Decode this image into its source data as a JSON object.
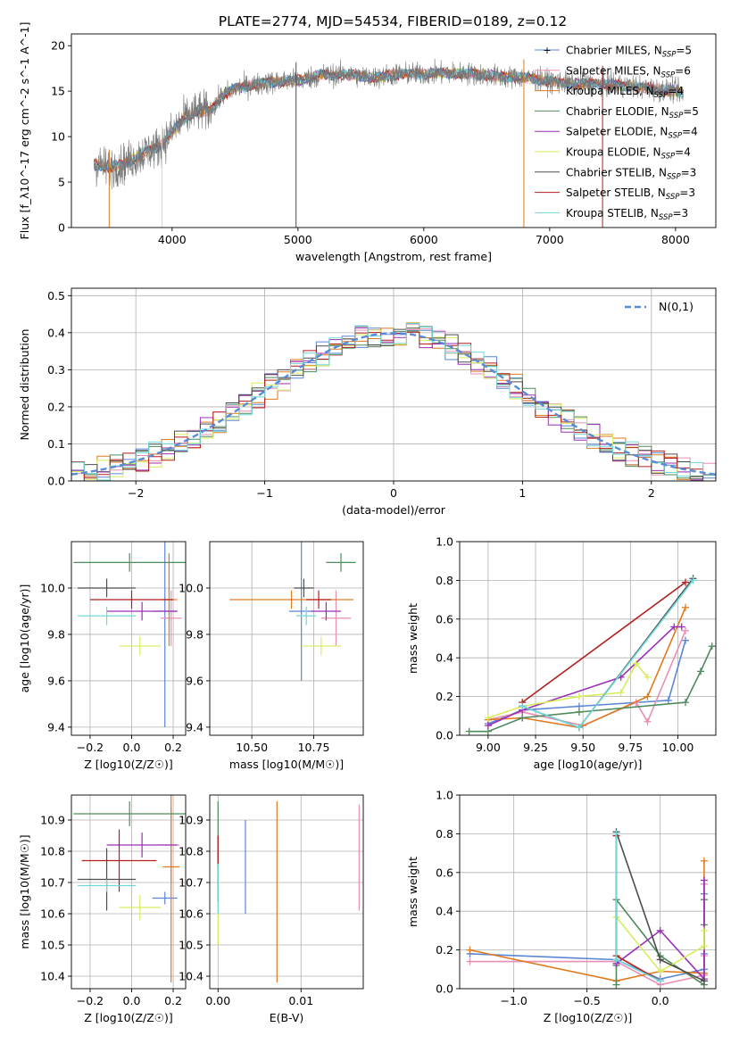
{
  "figure_title": "PLATE=2774, MJD=54534, FIBERID=0189, z=0.12",
  "models": [
    {
      "name": "Chabrier MILES",
      "n_ssp": "5",
      "color": "#5b86d6"
    },
    {
      "name": "Salpeter MILES",
      "n_ssp": "6",
      "color": "#e98fb4"
    },
    {
      "name": "Kroupa MILES",
      "n_ssp": "4",
      "color": "#e07a1f"
    },
    {
      "name": "Chabrier ELODIE",
      "n_ssp": "5",
      "color": "#4f8a5b"
    },
    {
      "name": "Salpeter ELODIE",
      "n_ssp": "4",
      "color": "#9b2fb5"
    },
    {
      "name": "Kroupa ELODIE",
      "n_ssp": "4",
      "color": "#d5ee5a"
    },
    {
      "name": "Chabrier STELIB",
      "n_ssp": "3",
      "color": "#4d4d4d"
    },
    {
      "name": "Salpeter STELIB",
      "n_ssp": "3",
      "color": "#b41f1f"
    },
    {
      "name": "Kroupa STELIB",
      "n_ssp": "3",
      "color": "#6fd8d8"
    }
  ],
  "chart_data": [
    {
      "id": "spectrum",
      "type": "line",
      "xlabel": "wavelength [Angstrom, rest frame]",
      "ylabel": "Flux [f_λ10^-17 erg cm^-2 s^-1 A^-1]",
      "xlim": [
        3200,
        8320
      ],
      "ylim": [
        0,
        21.3
      ],
      "xticks": [
        4000,
        5000,
        6000,
        7000,
        8000
      ],
      "yticks": [
        0,
        5,
        10,
        15,
        20
      ],
      "grid": false,
      "legend": "upper-right",
      "continuum_anchors": {
        "x": [
          3380,
          3500,
          3600,
          3700,
          3800,
          3900,
          4000,
          4100,
          4200,
          4300,
          4400,
          4500,
          4600,
          4800,
          5000,
          5200,
          5400,
          5600,
          5800,
          6000,
          6200,
          6400,
          6600,
          6800,
          7000,
          7200,
          7400,
          7600,
          7800,
          8000,
          8060
        ],
        "y": [
          7.0,
          6.6,
          6.9,
          7.6,
          8.4,
          8.9,
          10.5,
          12.0,
          12.8,
          12.8,
          14.5,
          15.3,
          15.6,
          16.0,
          16.2,
          16.8,
          16.8,
          16.5,
          16.9,
          16.9,
          17.0,
          16.9,
          16.6,
          16.5,
          16.1,
          15.8,
          15.8,
          15.6,
          15.3,
          15.0,
          14.8
        ]
      }
    },
    {
      "id": "residuals",
      "type": "histogram",
      "xlabel": "(data-model)/error",
      "ylabel": "Normed distribution",
      "xlim": [
        -2.5,
        2.5
      ],
      "ylim": [
        0,
        0.52
      ],
      "xticks": [
        -2,
        -1,
        0,
        1,
        2
      ],
      "yticks": [
        0.0,
        0.1,
        0.2,
        0.3,
        0.4,
        0.5
      ],
      "grid": true,
      "legend": "upper-right",
      "reference_label": "N(0,1)",
      "bin_width": 0.1
    },
    {
      "id": "age_vs_Z",
      "type": "errorbar",
      "xlabel": "Z [log10(Z/Z☉)]",
      "ylabel": "age [log10(age/yr)]",
      "xlim": [
        -0.29,
        0.26
      ],
      "ylim": [
        9.365,
        10.2
      ],
      "xticks": [
        -0.2,
        0.0,
        0.2
      ],
      "yticks": [
        9.4,
        9.6,
        9.8,
        10.0
      ],
      "grid": true,
      "points": [
        {
          "model": 0,
          "x": 0.16,
          "y": 9.9,
          "xerr": 0.06,
          "yerr": 0.5
        },
        {
          "model": 1,
          "x": 0.19,
          "y": 9.87,
          "xerr": 0.05,
          "yerr": 0.12
        },
        {
          "model": 2,
          "x": 0.18,
          "y": 9.95,
          "xerr": 0.04,
          "yerr": 0.2
        },
        {
          "model": 3,
          "x": -0.01,
          "y": 10.11,
          "xerr": 0.27,
          "yerr": 0.04
        },
        {
          "model": 4,
          "x": 0.05,
          "y": 9.9,
          "xerr": 0.17,
          "yerr": 0.04
        },
        {
          "model": 5,
          "x": 0.04,
          "y": 9.75,
          "xerr": 0.1,
          "yerr": 0.04
        },
        {
          "model": 6,
          "x": -0.12,
          "y": 10.0,
          "xerr": 0.14,
          "yerr": 0.04
        },
        {
          "model": 7,
          "x": 0.0,
          "y": 9.95,
          "xerr": 0.2,
          "yerr": 0.04
        },
        {
          "model": 8,
          "x": -0.12,
          "y": 9.88,
          "xerr": 0.14,
          "yerr": 0.04
        }
      ]
    },
    {
      "id": "age_vs_mass",
      "type": "errorbar",
      "xlabel": "mass [log10(M/M☉)]",
      "ylabel": "",
      "xlim": [
        10.33,
        10.95
      ],
      "ylim": [
        9.365,
        10.2
      ],
      "xticks": [
        10.5,
        10.75
      ],
      "yticks": [
        9.4,
        9.6,
        9.8,
        10.0
      ],
      "grid": true,
      "points": [
        {
          "model": 0,
          "x": 10.7,
          "y": 9.9,
          "xerr": 0.05,
          "yerr": 0.3
        },
        {
          "model": 1,
          "x": 10.84,
          "y": 9.87,
          "xerr": 0.06,
          "yerr": 0.12
        },
        {
          "model": 2,
          "x": 10.66,
          "y": 9.95,
          "xerr": 0.25,
          "yerr": 0.04
        },
        {
          "model": 3,
          "x": 10.86,
          "y": 10.11,
          "xerr": 0.06,
          "yerr": 0.04
        },
        {
          "model": 4,
          "x": 10.8,
          "y": 9.9,
          "xerr": 0.06,
          "yerr": 0.04
        },
        {
          "model": 5,
          "x": 10.78,
          "y": 9.75,
          "xerr": 0.08,
          "yerr": 0.04
        },
        {
          "model": 6,
          "x": 10.71,
          "y": 10.0,
          "xerr": 0.04,
          "yerr": 0.04
        },
        {
          "model": 7,
          "x": 10.77,
          "y": 9.95,
          "xerr": 0.05,
          "yerr": 0.04
        },
        {
          "model": 8,
          "x": 10.72,
          "y": 9.88,
          "xerr": 0.04,
          "yerr": 0.04
        }
      ]
    },
    {
      "id": "massweight_vs_age",
      "type": "line",
      "xlabel": "age [log10(age/yr)]",
      "ylabel": "mass weight",
      "xlim": [
        8.85,
        10.2
      ],
      "ylim": [
        0,
        1.0
      ],
      "xticks": [
        9.0,
        9.25,
        9.5,
        9.75,
        10.0
      ],
      "yticks": [
        0.0,
        0.2,
        0.4,
        0.6,
        0.8,
        1.0
      ],
      "grid": true,
      "series": [
        {
          "model": 0,
          "x": [
            9.0,
            9.18,
            9.48,
            9.95,
            10.04
          ],
          "y": [
            0.06,
            0.13,
            0.15,
            0.18,
            0.49
          ]
        },
        {
          "model": 1,
          "x": [
            9.0,
            9.18,
            9.5,
            9.78,
            9.84,
            10.04
          ],
          "y": [
            0.08,
            0.12,
            0.05,
            0.17,
            0.07,
            0.54
          ]
        },
        {
          "model": 2,
          "x": [
            9.0,
            9.18,
            9.48,
            9.84,
            10.04
          ],
          "y": [
            0.08,
            0.09,
            0.04,
            0.2,
            0.66
          ]
        },
        {
          "model": 3,
          "x": [
            8.9,
            9.0,
            9.18,
            9.48,
            10.04,
            10.12,
            10.18
          ],
          "y": [
            0.02,
            0.02,
            0.09,
            0.12,
            0.17,
            0.33,
            0.46
          ]
        },
        {
          "model": 4,
          "x": [
            9.0,
            9.18,
            9.7,
            9.98,
            10.02
          ],
          "y": [
            0.05,
            0.13,
            0.3,
            0.56,
            0.56
          ]
        },
        {
          "model": 5,
          "x": [
            9.0,
            9.18,
            9.48,
            9.7,
            9.78,
            9.84
          ],
          "y": [
            0.09,
            0.15,
            0.2,
            0.22,
            0.37,
            0.3
          ]
        },
        {
          "model": 6,
          "x": [
            9.18,
            9.48,
            10.08
          ],
          "y": [
            0.15,
            0.04,
            0.81
          ]
        },
        {
          "model": 7,
          "x": [
            9.18,
            10.04
          ],
          "y": [
            0.17,
            0.79
          ]
        },
        {
          "model": 8,
          "x": [
            9.18,
            9.48,
            10.08
          ],
          "y": [
            0.15,
            0.04,
            0.8
          ]
        }
      ]
    },
    {
      "id": "mass_vs_Z",
      "type": "errorbar",
      "xlabel": "Z [log10(Z/Z☉)]",
      "ylabel": "mass [log10(M/M☉)]",
      "xlim": [
        -0.29,
        0.26
      ],
      "ylim": [
        10.36,
        10.98
      ],
      "xticks": [
        -0.2,
        0.0,
        0.2
      ],
      "yticks": [
        10.4,
        10.5,
        10.6,
        10.7,
        10.8,
        10.9
      ],
      "grid": true,
      "points": [
        {
          "model": 0,
          "x": 0.16,
          "y": 10.65,
          "xerr": 0.06,
          "yerr": 0.02
        },
        {
          "model": 1,
          "x": 0.19,
          "y": 10.82,
          "xerr": 0.04,
          "yerr": 0.12
        },
        {
          "model": 2,
          "x": 0.19,
          "y": 10.75,
          "xerr": 0.04,
          "yerr": 0.37
        },
        {
          "model": 3,
          "x": -0.01,
          "y": 10.92,
          "xerr": 0.27,
          "yerr": 0.04
        },
        {
          "model": 4,
          "x": 0.05,
          "y": 10.82,
          "xerr": 0.17,
          "yerr": 0.04
        },
        {
          "model": 5,
          "x": 0.04,
          "y": 10.62,
          "xerr": 0.1,
          "yerr": 0.04
        },
        {
          "model": 6,
          "x": -0.12,
          "y": 10.71,
          "xerr": 0.14,
          "yerr": 0.1
        },
        {
          "model": 7,
          "x": -0.06,
          "y": 10.77,
          "xerr": 0.18,
          "yerr": 0.1
        },
        {
          "model": 8,
          "x": -0.12,
          "y": 10.69,
          "xerr": 0.14,
          "yerr": 0.02
        }
      ]
    },
    {
      "id": "mass_vs_ebv",
      "type": "errorbar",
      "xlabel": "E(B-V)",
      "ylabel": "",
      "xlim": [
        -0.001,
        0.0175
      ],
      "ylim": [
        10.36,
        10.98
      ],
      "xticks": [
        0.0,
        0.01
      ],
      "yticks": [
        10.4,
        10.5,
        10.6,
        10.7,
        10.8,
        10.9
      ],
      "grid": true,
      "points": [
        {
          "model": 0,
          "x": 0.0033,
          "y": 10.75,
          "xerr": 0,
          "yerr": 0.15
        },
        {
          "model": 1,
          "x": 0.017,
          "y": 10.78,
          "xerr": 0,
          "yerr": 0.17
        },
        {
          "model": 2,
          "x": 0.0071,
          "y": 10.67,
          "xerr": 0,
          "yerr": 0.29
        },
        {
          "model": 3,
          "x": 0.0,
          "y": 10.85,
          "xerr": 0,
          "yerr": 0.11
        },
        {
          "model": 4,
          "x": 0.0,
          "y": 10.8,
          "xerr": 0,
          "yerr": 0.05
        },
        {
          "model": 5,
          "x": 0.0,
          "y": 10.64,
          "xerr": 0,
          "yerr": 0.14
        },
        {
          "model": 6,
          "x": 0.0,
          "y": 10.72,
          "xerr": 0,
          "yerr": 0.08
        },
        {
          "model": 7,
          "x": 0.0,
          "y": 10.8,
          "xerr": 0,
          "yerr": 0.05
        },
        {
          "model": 8,
          "x": 0.0,
          "y": 10.68,
          "xerr": 0,
          "yerr": 0.08
        }
      ]
    },
    {
      "id": "massweight_vs_Z",
      "type": "line",
      "xlabel": "Z [log10(Z/Z☉)]",
      "ylabel": "mass weight",
      "xlim": [
        -1.37,
        0.38
      ],
      "ylim": [
        0,
        1.0
      ],
      "xticks": [
        -1.0,
        -0.5,
        0.0
      ],
      "yticks": [
        0.0,
        0.2,
        0.4,
        0.6,
        0.8,
        1.0
      ],
      "grid": true,
      "series": [
        {
          "model": 0,
          "x": [
            -1.3,
            -0.3,
            0.0,
            0.3,
            0.3,
            0.3
          ],
          "y": [
            0.18,
            0.15,
            0.05,
            0.1,
            0.18,
            0.49
          ]
        },
        {
          "model": 1,
          "x": [
            -1.3,
            -0.3,
            0.0,
            0.3,
            0.3,
            0.3,
            0.3
          ],
          "y": [
            0.14,
            0.14,
            0.02,
            0.07,
            0.08,
            0.17,
            0.54
          ]
        },
        {
          "model": 2,
          "x": [
            -1.3,
            -0.3,
            0.0,
            0.3,
            0.3
          ],
          "y": [
            0.2,
            0.04,
            0.09,
            0.08,
            0.66
          ]
        },
        {
          "model": 3,
          "x": [
            -0.3,
            -0.3,
            -0.3,
            0.0,
            0.3,
            0.3,
            0.3
          ],
          "y": [
            0.02,
            0.12,
            0.46,
            0.17,
            0.02,
            0.33,
            0.46
          ]
        },
        {
          "model": 4,
          "x": [
            -0.3,
            0.0,
            0.3,
            0.3
          ],
          "y": [
            0.13,
            0.3,
            0.05,
            0.56
          ]
        },
        {
          "model": 5,
          "x": [
            -0.3,
            0.0,
            0.3,
            0.3
          ],
          "y": [
            0.37,
            0.09,
            0.22,
            0.3
          ]
        },
        {
          "model": 6,
          "x": [
            -0.3,
            0.0,
            0.3
          ],
          "y": [
            0.81,
            0.15,
            0.04
          ]
        },
        {
          "model": 7,
          "x": [
            -0.3,
            -0.3,
            0.0
          ],
          "y": [
            0.79,
            0.17,
            0.04
          ]
        },
        {
          "model": 8,
          "x": [
            -0.3,
            -0.3,
            0.0
          ],
          "y": [
            0.8,
            0.15,
            0.04
          ]
        }
      ]
    }
  ]
}
